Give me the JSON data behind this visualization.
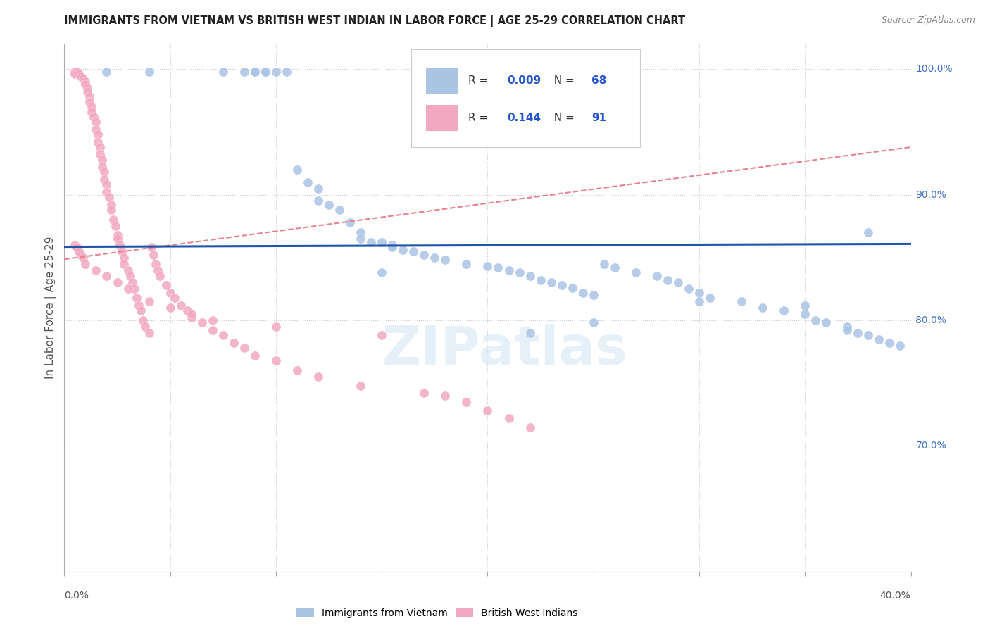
{
  "title": "IMMIGRANTS FROM VIETNAM VS BRITISH WEST INDIAN IN LABOR FORCE | AGE 25-29 CORRELATION CHART",
  "source": "Source: ZipAtlas.com",
  "ylabel": "In Labor Force | Age 25-29",
  "x_min": 0.0,
  "x_max": 0.4,
  "y_min": 0.6,
  "y_max": 1.02,
  "blue_R": "0.009",
  "blue_N": "68",
  "pink_R": "0.144",
  "pink_N": "91",
  "blue_color": "#aac4e4",
  "pink_color": "#f2a8c0",
  "blue_line_color": "#2255aa",
  "pink_line_color": "#e88090",
  "legend_label_blue": "Immigrants from Vietnam",
  "legend_label_pink": "British West Indians",
  "watermark": "ZIPatlas",
  "blue_scatter_x": [
    0.02,
    0.04,
    0.075,
    0.085,
    0.09,
    0.09,
    0.095,
    0.095,
    0.1,
    0.105,
    0.11,
    0.115,
    0.12,
    0.12,
    0.125,
    0.13,
    0.135,
    0.14,
    0.14,
    0.145,
    0.15,
    0.155,
    0.155,
    0.16,
    0.165,
    0.17,
    0.175,
    0.18,
    0.19,
    0.2,
    0.205,
    0.21,
    0.215,
    0.22,
    0.225,
    0.23,
    0.235,
    0.24,
    0.245,
    0.25,
    0.255,
    0.26,
    0.27,
    0.28,
    0.285,
    0.29,
    0.295,
    0.3,
    0.305,
    0.32,
    0.33,
    0.34,
    0.35,
    0.355,
    0.36,
    0.37,
    0.37,
    0.375,
    0.38,
    0.385,
    0.39,
    0.395,
    0.22,
    0.35,
    0.25,
    0.3,
    0.38,
    0.15
  ],
  "blue_scatter_y": [
    0.998,
    0.998,
    0.998,
    0.998,
    0.998,
    0.998,
    0.998,
    0.998,
    0.998,
    0.998,
    0.92,
    0.91,
    0.905,
    0.895,
    0.892,
    0.888,
    0.878,
    0.87,
    0.865,
    0.862,
    0.862,
    0.86,
    0.858,
    0.856,
    0.855,
    0.852,
    0.85,
    0.848,
    0.845,
    0.843,
    0.842,
    0.84,
    0.838,
    0.835,
    0.832,
    0.83,
    0.828,
    0.826,
    0.822,
    0.82,
    0.845,
    0.842,
    0.838,
    0.835,
    0.832,
    0.83,
    0.825,
    0.822,
    0.818,
    0.815,
    0.81,
    0.808,
    0.805,
    0.8,
    0.798,
    0.795,
    0.792,
    0.79,
    0.788,
    0.785,
    0.782,
    0.78,
    0.79,
    0.812,
    0.798,
    0.815,
    0.87,
    0.838
  ],
  "pink_scatter_x": [
    0.005,
    0.005,
    0.006,
    0.007,
    0.008,
    0.009,
    0.01,
    0.01,
    0.011,
    0.011,
    0.012,
    0.012,
    0.013,
    0.013,
    0.014,
    0.015,
    0.015,
    0.016,
    0.016,
    0.017,
    0.017,
    0.018,
    0.018,
    0.019,
    0.019,
    0.02,
    0.02,
    0.021,
    0.022,
    0.022,
    0.023,
    0.024,
    0.025,
    0.025,
    0.026,
    0.027,
    0.028,
    0.028,
    0.03,
    0.031,
    0.032,
    0.033,
    0.034,
    0.035,
    0.036,
    0.037,
    0.038,
    0.04,
    0.041,
    0.042,
    0.043,
    0.044,
    0.045,
    0.048,
    0.05,
    0.052,
    0.055,
    0.058,
    0.06,
    0.065,
    0.07,
    0.075,
    0.08,
    0.085,
    0.09,
    0.1,
    0.11,
    0.12,
    0.14,
    0.17,
    0.18,
    0.19,
    0.2,
    0.21,
    0.22,
    0.005,
    0.006,
    0.007,
    0.008,
    0.009,
    0.01,
    0.015,
    0.02,
    0.025,
    0.03,
    0.04,
    0.05,
    0.06,
    0.07,
    0.1,
    0.15
  ],
  "pink_scatter_y": [
    0.998,
    0.996,
    0.998,
    0.996,
    0.994,
    0.992,
    0.99,
    0.988,
    0.985,
    0.982,
    0.978,
    0.974,
    0.97,
    0.966,
    0.962,
    0.958,
    0.952,
    0.948,
    0.942,
    0.938,
    0.932,
    0.928,
    0.922,
    0.918,
    0.912,
    0.908,
    0.902,
    0.898,
    0.892,
    0.888,
    0.88,
    0.875,
    0.868,
    0.865,
    0.86,
    0.855,
    0.85,
    0.845,
    0.84,
    0.835,
    0.83,
    0.825,
    0.818,
    0.812,
    0.808,
    0.8,
    0.795,
    0.79,
    0.858,
    0.852,
    0.845,
    0.84,
    0.835,
    0.828,
    0.822,
    0.818,
    0.812,
    0.808,
    0.802,
    0.798,
    0.792,
    0.788,
    0.782,
    0.778,
    0.772,
    0.768,
    0.76,
    0.755,
    0.748,
    0.742,
    0.74,
    0.735,
    0.728,
    0.722,
    0.715,
    0.86,
    0.858,
    0.855,
    0.852,
    0.85,
    0.845,
    0.84,
    0.835,
    0.83,
    0.825,
    0.815,
    0.81,
    0.805,
    0.8,
    0.795,
    0.788
  ]
}
